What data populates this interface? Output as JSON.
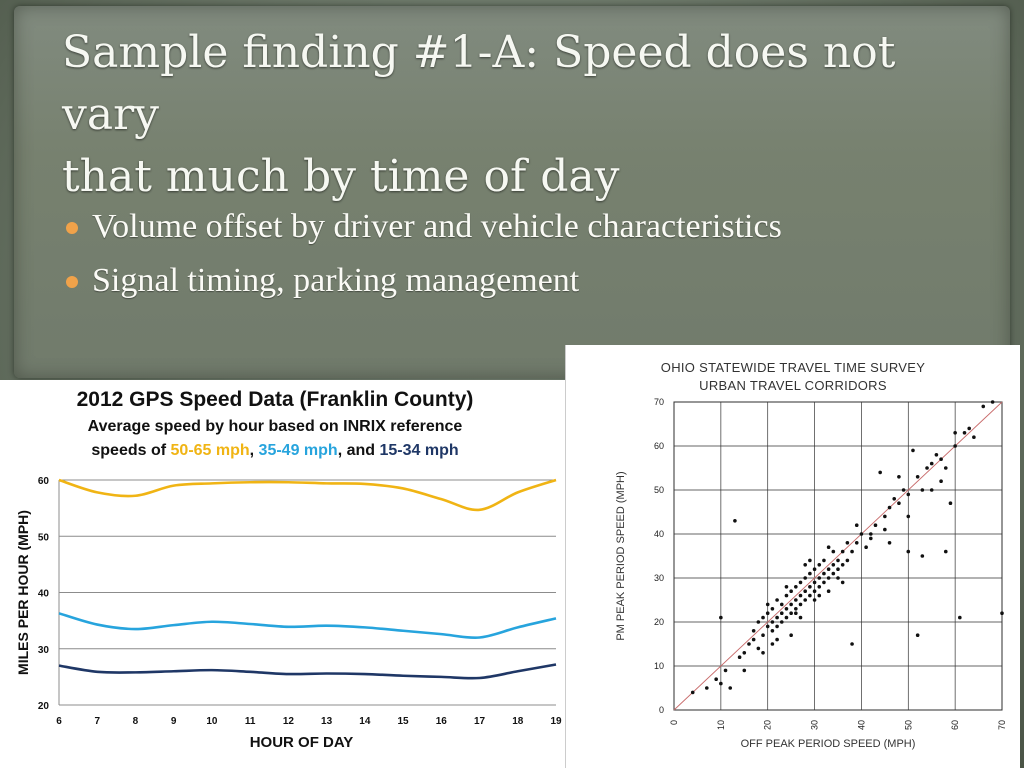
{
  "slide": {
    "title_line1": "Sample finding #1-A: Speed does not vary",
    "title_line2": "that much by time of day",
    "bullets": [
      "Volume offset by driver and vehicle characteristics",
      "Signal timing, parking management"
    ],
    "bullet_color": "#f0a24a",
    "text_color": "#fbfbf6"
  },
  "left_chart": {
    "title": "2012 GPS Speed Data (Franklin County)",
    "subtitle_line1": "Average speed by hour based on INRIX reference",
    "subtitle_prefix": "speeds of ",
    "range_high": "50-65 mph",
    "sep1": ", ",
    "range_mid": "35-49 mph",
    "sep2": ", and ",
    "range_low": "15-34 mph"
  },
  "right_chart": {
    "title_line1": "OHIO STATEWIDE TRAVEL TIME SURVEY",
    "title_line2": "URBAN TRAVEL CORRIDORS"
  },
  "chart_data": [
    {
      "type": "line",
      "title": "2012 GPS Speed Data (Franklin County)",
      "xlabel": "HOUR OF DAY",
      "ylabel": "MILES PER HOUR (MPH)",
      "x": [
        6,
        7,
        8,
        9,
        10,
        11,
        12,
        13,
        14,
        15,
        16,
        17,
        18,
        19
      ],
      "ylim": [
        20,
        60
      ],
      "yticks": [
        20,
        30,
        40,
        50,
        60
      ],
      "grid": "horizontal",
      "series": [
        {
          "name": "50-65 mph",
          "color": "#f0b414",
          "values": [
            60,
            57.8,
            57.2,
            59,
            59.4,
            59.6,
            59.6,
            59.4,
            59.3,
            58.5,
            56.6,
            54.7,
            57.8,
            60
          ]
        },
        {
          "name": "35-49 mph",
          "color": "#27a4dd",
          "values": [
            36.3,
            34.3,
            33.5,
            34.2,
            34.8,
            34.4,
            33.9,
            34.1,
            33.8,
            33.2,
            32.6,
            32.0,
            33.8,
            35.4
          ]
        },
        {
          "name": "15-34 mph",
          "color": "#1f3766",
          "values": [
            27.0,
            25.9,
            25.8,
            26.0,
            26.2,
            25.9,
            25.5,
            25.6,
            25.5,
            25.2,
            25.0,
            24.8,
            26.0,
            27.2
          ]
        }
      ]
    },
    {
      "type": "scatter",
      "title": "OHIO STATEWIDE TRAVEL TIME SURVEY URBAN TRAVEL CORRIDORS",
      "xlabel": "OFF PEAK PERIOD SPEED (MPH)",
      "ylabel": "PM PEAK PERIOD SPEED (MPH)",
      "xlim": [
        0,
        70
      ],
      "ylim": [
        0,
        70
      ],
      "ticks": [
        0,
        10,
        20,
        30,
        40,
        50,
        60,
        70
      ],
      "grid": "both",
      "reference_line": "y = x",
      "points": [
        [
          4,
          4
        ],
        [
          7,
          5
        ],
        [
          9,
          7
        ],
        [
          10,
          6
        ],
        [
          10,
          21
        ],
        [
          11,
          9
        ],
        [
          12,
          5
        ],
        [
          13,
          43
        ],
        [
          14,
          12
        ],
        [
          15,
          13
        ],
        [
          16,
          15
        ],
        [
          17,
          16
        ],
        [
          17,
          18
        ],
        [
          18,
          14
        ],
        [
          18,
          20
        ],
        [
          19,
          17
        ],
        [
          19,
          21
        ],
        [
          20,
          19
        ],
        [
          20,
          22
        ],
        [
          20,
          24
        ],
        [
          21,
          18
        ],
        [
          21,
          20
        ],
        [
          21,
          23
        ],
        [
          22,
          19
        ],
        [
          22,
          21
        ],
        [
          22,
          25
        ],
        [
          23,
          20
        ],
        [
          23,
          22
        ],
        [
          23,
          24
        ],
        [
          24,
          21
        ],
        [
          24,
          23
        ],
        [
          24,
          26
        ],
        [
          25,
          22
        ],
        [
          25,
          24
        ],
        [
          25,
          27
        ],
        [
          26,
          23
        ],
        [
          26,
          25
        ],
        [
          26,
          28
        ],
        [
          27,
          24
        ],
        [
          27,
          26
        ],
        [
          27,
          29
        ],
        [
          28,
          25
        ],
        [
          28,
          27
        ],
        [
          28,
          30
        ],
        [
          29,
          26
        ],
        [
          29,
          28
        ],
        [
          29,
          31
        ],
        [
          30,
          27
        ],
        [
          30,
          29
        ],
        [
          30,
          32
        ],
        [
          31,
          28
        ],
        [
          31,
          30
        ],
        [
          31,
          33
        ],
        [
          32,
          29
        ],
        [
          32,
          31
        ],
        [
          32,
          34
        ],
        [
          33,
          30
        ],
        [
          33,
          32
        ],
        [
          34,
          31
        ],
        [
          34,
          33
        ],
        [
          34,
          36
        ],
        [
          35,
          32
        ],
        [
          35,
          34
        ],
        [
          36,
          33
        ],
        [
          36,
          36
        ],
        [
          37,
          34
        ],
        [
          37,
          38
        ],
        [
          38,
          15
        ],
        [
          38,
          36
        ],
        [
          39,
          38
        ],
        [
          40,
          40
        ],
        [
          41,
          37
        ],
        [
          42,
          40
        ],
        [
          43,
          42
        ],
        [
          44,
          54
        ],
        [
          45,
          44
        ],
        [
          46,
          46
        ],
        [
          47,
          48
        ],
        [
          48,
          47
        ],
        [
          49,
          50
        ],
        [
          50,
          36
        ],
        [
          50,
          49
        ],
        [
          51,
          59
        ],
        [
          52,
          53
        ],
        [
          53,
          35
        ],
        [
          54,
          55
        ],
        [
          55,
          56
        ],
        [
          56,
          58
        ],
        [
          57,
          52
        ],
        [
          58,
          36
        ],
        [
          59,
          47
        ],
        [
          60,
          60
        ],
        [
          61,
          21
        ],
        [
          62,
          63
        ],
        [
          63,
          64
        ],
        [
          64,
          62
        ],
        [
          66,
          69
        ],
        [
          68,
          70
        ],
        [
          70,
          22
        ],
        [
          52,
          17
        ],
        [
          25,
          17
        ],
        [
          30,
          25
        ],
        [
          27,
          21
        ],
        [
          22,
          16
        ],
        [
          36,
          29
        ],
        [
          33,
          37
        ],
        [
          39,
          42
        ],
        [
          45,
          41
        ],
        [
          53,
          50
        ],
        [
          57,
          57
        ],
        [
          50,
          44
        ],
        [
          28,
          33
        ],
        [
          24,
          28
        ],
        [
          33,
          27
        ],
        [
          21,
          15
        ],
        [
          19,
          13
        ],
        [
          15,
          9
        ],
        [
          46,
          38
        ],
        [
          58,
          55
        ],
        [
          48,
          53
        ],
        [
          29,
          34
        ],
        [
          26,
          22
        ],
        [
          31,
          26
        ],
        [
          35,
          30
        ],
        [
          42,
          39
        ],
        [
          55,
          50
        ],
        [
          60,
          63
        ]
      ]
    }
  ]
}
